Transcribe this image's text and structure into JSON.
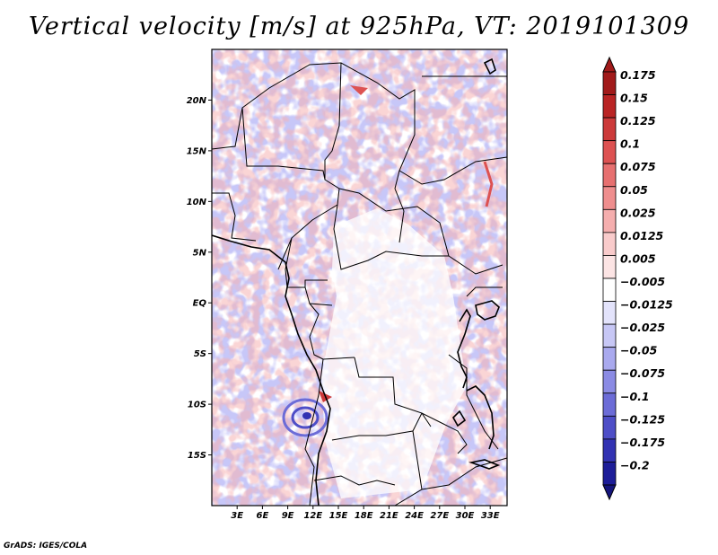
{
  "title": "Vertical velocity [m/s] at 925hPa, VT: 2019101309",
  "credit": "GrADS: IGES/COLA",
  "map": {
    "lon_range": [
      0,
      35
    ],
    "lat_range": [
      -20,
      25
    ],
    "lat_labels": [
      {
        "value": 20,
        "text": "20N"
      },
      {
        "value": 15,
        "text": "15N"
      },
      {
        "value": 10,
        "text": "10N"
      },
      {
        "value": 5,
        "text": "5N"
      },
      {
        "value": 0,
        "text": "EQ"
      },
      {
        "value": -5,
        "text": "5S"
      },
      {
        "value": -10,
        "text": "10S"
      },
      {
        "value": -15,
        "text": "15S"
      }
    ],
    "lon_labels": [
      {
        "value": 3,
        "text": "3E"
      },
      {
        "value": 6,
        "text": "6E"
      },
      {
        "value": 9,
        "text": "9E"
      },
      {
        "value": 12,
        "text": "12E"
      },
      {
        "value": 15,
        "text": "15E"
      },
      {
        "value": 18,
        "text": "18E"
      },
      {
        "value": 21,
        "text": "21E"
      },
      {
        "value": 24,
        "text": "24E"
      },
      {
        "value": 27,
        "text": "27E"
      },
      {
        "value": 30,
        "text": "30E"
      },
      {
        "value": 33,
        "text": "33E"
      }
    ]
  },
  "colorbar": {
    "levels": [
      {
        "label": "0.175",
        "color": "#a11a1a"
      },
      {
        "label": "0.15",
        "color": "#b92424"
      },
      {
        "label": "0.125",
        "color": "#cc3a3a"
      },
      {
        "label": "0.1",
        "color": "#dd5252"
      },
      {
        "label": "0.075",
        "color": "#e77070"
      },
      {
        "label": "0.05",
        "color": "#ef8e8e"
      },
      {
        "label": "0.025",
        "color": "#f5aeae"
      },
      {
        "label": "0.0125",
        "color": "#f9cbcb"
      },
      {
        "label": "0.005",
        "color": "#fce4e4"
      },
      {
        "label": "−0.005",
        "color": "#ffffff"
      },
      {
        "label": "−0.0125",
        "color": "#e3e3fb"
      },
      {
        "label": "−0.025",
        "color": "#c7c7f5"
      },
      {
        "label": "−0.05",
        "color": "#a9a9ee"
      },
      {
        "label": "−0.075",
        "color": "#8b8be4"
      },
      {
        "label": "−0.1",
        "color": "#6c6cd7"
      },
      {
        "label": "−0.125",
        "color": "#4e4ec7"
      },
      {
        "label": "−0.175",
        "color": "#3232b2"
      },
      {
        "label": "−0.2",
        "color": "#1d1d98"
      }
    ],
    "top_cap_color": "#a11a1a",
    "bottom_cap_color": "#15157c"
  }
}
